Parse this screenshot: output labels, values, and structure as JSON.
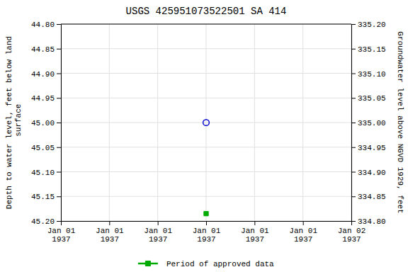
{
  "chart_data": {
    "type": "scatter",
    "title": "USGS 425951073522501 SA 414",
    "ylabel": "Depth to water level, feet below land\n surface",
    "y2label": "Groundwater level above NGVD 1929, feet",
    "categories": [
      "Jan 01\n1937",
      "Jan 01\n1937",
      "Jan 01\n1937",
      "Jan 01\n1937",
      "Jan 01\n1937",
      "Jan 01\n1937",
      "Jan 02\n1937"
    ],
    "series": [
      {
        "color": "#0000cc",
        "marker": "open-circle",
        "values": [
          null,
          null,
          null,
          45.0,
          null,
          null,
          null
        ]
      },
      {
        "name": "Period of approved data",
        "color": "#00aa00",
        "marker": "square",
        "values": [
          null,
          null,
          null,
          45.185,
          null,
          null,
          null
        ]
      }
    ],
    "ylim": [
      45.2,
      44.8
    ],
    "yticks": [
      {
        "value": 44.8,
        "label": "44.80"
      },
      44.85,
      {
        "value": 44.9,
        "label": "44.90"
      },
      44.95,
      {
        "value": 45.0,
        "label": "45.00"
      },
      45.05,
      {
        "value": 45.1,
        "label": "45.10"
      },
      45.15,
      {
        "value": 45.2,
        "label": "45.20"
      }
    ],
    "y2lim": [
      334.8,
      335.2
    ],
    "y2ticks": [
      {
        "value": 334.8,
        "label": "334.80"
      },
      334.85,
      {
        "value": 334.9,
        "label": "334.90"
      },
      334.95,
      {
        "value": 335.0,
        "label": "335.00"
      },
      335.05,
      {
        "value": 335.1,
        "label": "335.10"
      },
      335.15,
      {
        "value": 335.2,
        "label": "335.20"
      }
    ],
    "grid": true,
    "legend": "bottom"
  }
}
